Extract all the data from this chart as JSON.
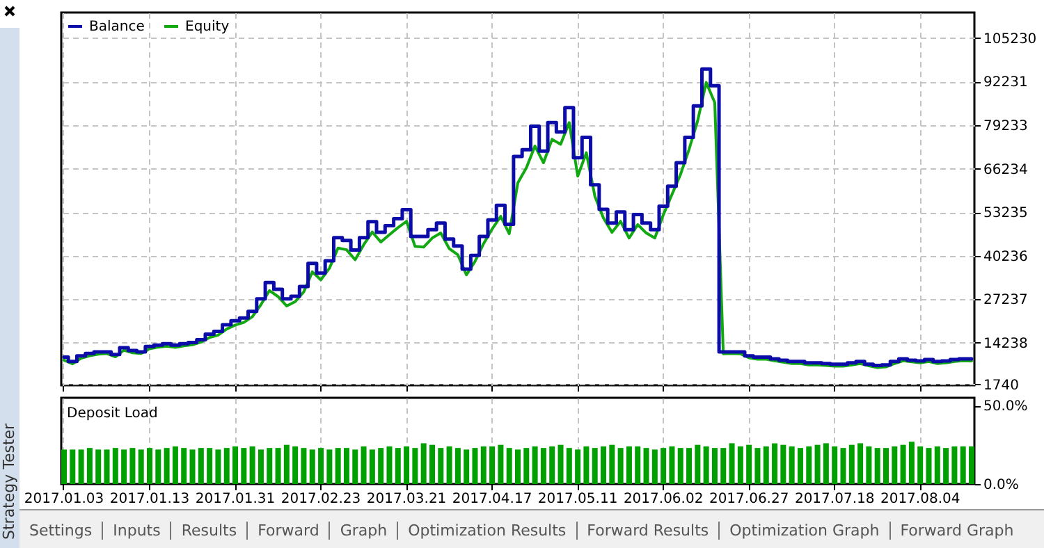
{
  "chart_data": [
    {
      "type": "line",
      "categories": [
        null,
        null,
        null,
        null,
        null,
        null,
        null,
        null,
        null,
        null,
        null,
        null,
        null,
        null,
        null,
        null,
        null,
        null,
        null,
        null,
        null,
        null,
        null,
        null,
        null,
        null,
        null,
        null,
        null,
        null,
        null,
        null,
        null,
        null,
        null,
        null,
        null,
        null,
        null,
        null,
        null,
        null,
        null,
        null,
        null,
        null,
        null,
        null,
        null,
        null,
        null,
        null,
        null,
        null,
        null,
        null,
        null,
        null,
        null,
        null,
        null,
        null,
        null,
        null,
        null,
        null,
        null,
        null,
        null,
        null,
        null,
        null,
        null,
        null,
        null,
        null,
        null,
        null,
        null,
        null,
        null,
        null,
        null,
        null,
        null,
        null,
        null,
        null,
        null,
        null,
        null,
        null,
        null,
        null,
        null,
        null,
        null,
        null,
        null,
        null,
        null,
        null,
        null,
        null,
        null,
        null,
        null
      ],
      "series": [
        {
          "name": "Balance",
          "type": "step",
          "color": "#0c0ca8",
          "values": [
            9900,
            8600,
            10300,
            11000,
            11500,
            11500,
            10700,
            12700,
            11900,
            11500,
            13100,
            13500,
            13900,
            13500,
            13900,
            14300,
            15100,
            16800,
            17600,
            19600,
            20800,
            21600,
            23600,
            27300,
            32200,
            30200,
            27300,
            28100,
            31000,
            37900,
            35000,
            38700,
            45600,
            44800,
            41900,
            45600,
            50400,
            47200,
            49200,
            51300,
            54000,
            46000,
            46000,
            48000,
            50000,
            45200,
            43100,
            36200,
            40300,
            46000,
            50900,
            55300,
            49600,
            69900,
            71900,
            78900,
            71500,
            80000,
            77200,
            84500,
            69500,
            75600,
            61400,
            54100,
            50000,
            53300,
            48000,
            52500,
            50000,
            48000,
            55000,
            61000,
            68000,
            75600,
            85000,
            96000,
            91000,
            11500,
            11500,
            11500,
            10300,
            9900,
            9900,
            9400,
            9000,
            8600,
            8600,
            8200,
            8200,
            8000,
            7800,
            7800,
            8200,
            8600,
            7800,
            7400,
            7600,
            8600,
            9400,
            9000,
            8800,
            9200,
            8600,
            8800,
            9200,
            9400,
            9400
          ]
        },
        {
          "name": "Equity",
          "type": "line",
          "color": "#12a812",
          "values": [
            9000,
            7900,
            9600,
            10300,
            10800,
            11000,
            10000,
            12000,
            11200,
            11000,
            12400,
            12900,
            13200,
            12800,
            13300,
            13600,
            14400,
            15800,
            16500,
            18300,
            19500,
            20300,
            22000,
            25600,
            29800,
            28000,
            25200,
            26500,
            29400,
            35400,
            33000,
            36500,
            42500,
            42000,
            39000,
            43500,
            47300,
            44300,
            46500,
            48600,
            50500,
            43000,
            42800,
            45500,
            47000,
            42300,
            40500,
            34500,
            38500,
            43800,
            48200,
            52000,
            46800,
            62000,
            66500,
            73000,
            68000,
            75000,
            73500,
            80000,
            64000,
            71000,
            58000,
            51500,
            47200,
            50500,
            45500,
            49500,
            47000,
            45500,
            52500,
            58500,
            64500,
            72000,
            80500,
            92000,
            86000,
            10900,
            11000,
            10900,
            9700,
            9300,
            9300,
            8800,
            8400,
            8000,
            8000,
            7600,
            7600,
            7400,
            7200,
            7200,
            7600,
            8000,
            7300,
            6800,
            7000,
            8000,
            8800,
            8500,
            8200,
            8600,
            8000,
            8200,
            8600,
            8800,
            8800
          ]
        }
      ],
      "ylim": [
        1500,
        112900
      ],
      "yticks": [
        1740,
        14238,
        27237,
        40236,
        53235,
        66234,
        79233,
        92231,
        105230
      ],
      "grid": true,
      "legend": "top left",
      "tick_labels": "y"
    },
    {
      "type": "bar",
      "title": "Deposit Load",
      "categories": [
        "2017.01.03",
        null,
        null,
        null,
        null,
        null,
        null,
        null,
        null,
        null,
        "2017.01.13",
        null,
        null,
        null,
        null,
        null,
        null,
        null,
        null,
        null,
        "2017.01.31",
        null,
        null,
        null,
        null,
        null,
        null,
        null,
        null,
        null,
        "2017.02.23",
        null,
        null,
        null,
        null,
        null,
        null,
        null,
        null,
        null,
        "2017.03.21",
        null,
        null,
        null,
        null,
        null,
        null,
        null,
        null,
        null,
        "2017.04.17",
        null,
        null,
        null,
        null,
        null,
        null,
        null,
        null,
        null,
        "2017.05.11",
        null,
        null,
        null,
        null,
        null,
        null,
        null,
        null,
        null,
        "2017.06.02",
        null,
        null,
        null,
        null,
        null,
        null,
        null,
        null,
        null,
        "2017.06.27",
        null,
        null,
        null,
        null,
        null,
        null,
        null,
        null,
        null,
        "2017.07.18",
        null,
        null,
        null,
        null,
        null,
        null,
        null,
        null,
        null,
        "2017.08.04",
        null,
        null,
        null,
        null,
        null,
        null
      ],
      "values": [
        22,
        22,
        22,
        23,
        22,
        22,
        23,
        22,
        23,
        22,
        23,
        22,
        23,
        24,
        23,
        22,
        23,
        23,
        22,
        23,
        24,
        23,
        24,
        22,
        23,
        23,
        25,
        24,
        23,
        22,
        23,
        22,
        23,
        23,
        22,
        24,
        22,
        23,
        24,
        23,
        24,
        23,
        26,
        25,
        23,
        24,
        23,
        22,
        23,
        24,
        24,
        25,
        23,
        22,
        23,
        24,
        23,
        24,
        25,
        23,
        22,
        24,
        23,
        24,
        25,
        23,
        24,
        24,
        23,
        22,
        23,
        24,
        23,
        23,
        25,
        24,
        23,
        23,
        26,
        24,
        25,
        23,
        24,
        26,
        25,
        24,
        23,
        24,
        25,
        26,
        24,
        23,
        25,
        26,
        24,
        23,
        23,
        24,
        25,
        27,
        24,
        23,
        24,
        23,
        24,
        24,
        24
      ],
      "color": "#00a000",
      "ylim": [
        0,
        55
      ],
      "yticks": [
        {
          "value": 0,
          "label": "0.0%"
        },
        {
          "value": 50,
          "label": "50.0%"
        }
      ],
      "grid": "x"
    },
    {
      "type": "other",
      "annotations": [
        "Strategy Tester",
        "Settings",
        "Inputs",
        "Results",
        "Forward",
        "Graph",
        "Optimization Results",
        "Forward Results",
        "Optimization Graph",
        "Forward Graph"
      ]
    }
  ]
}
